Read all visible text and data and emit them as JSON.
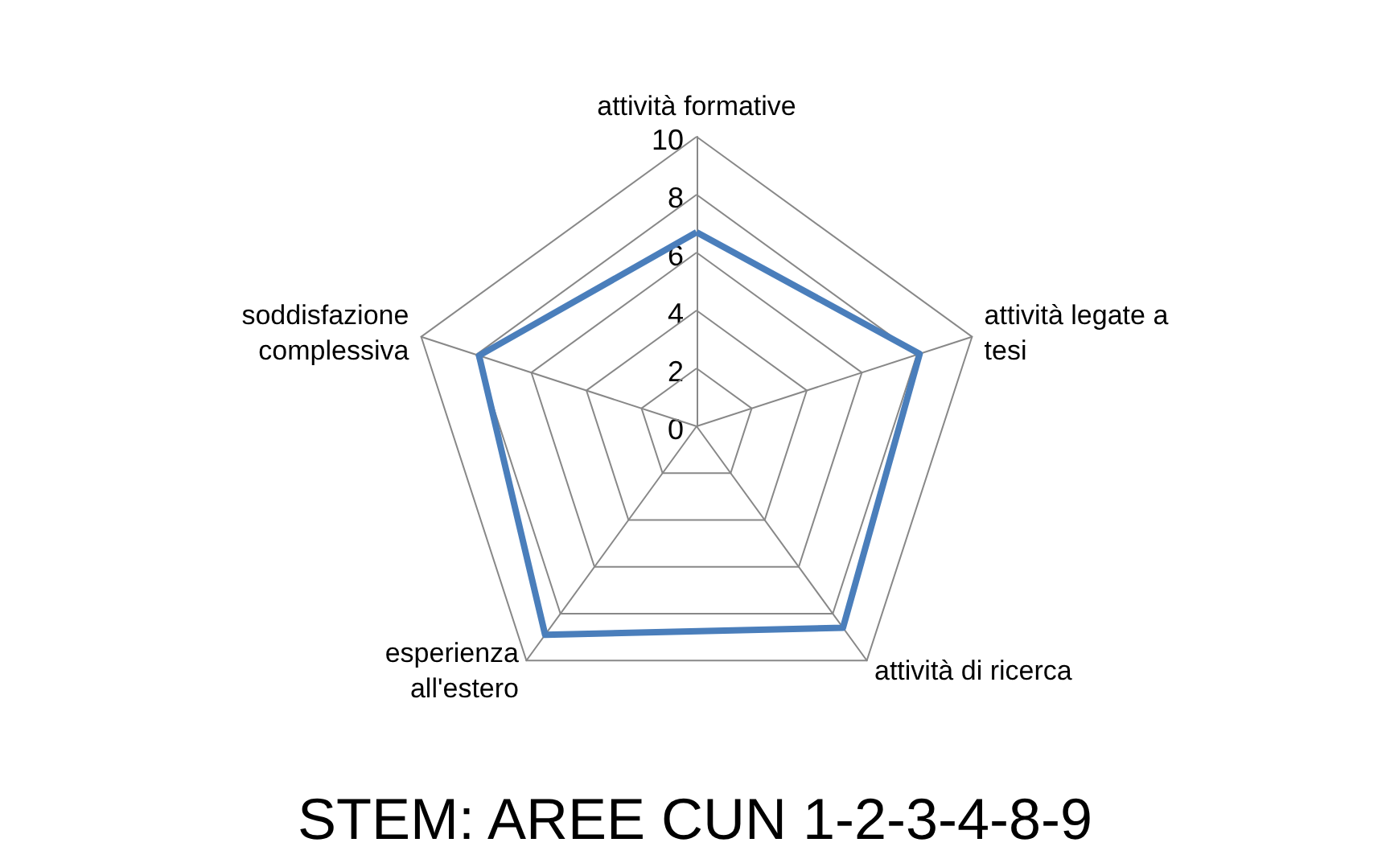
{
  "chart_data": {
    "type": "radar",
    "title": "STEM: AREE CUN 1-2-3-4-8-9",
    "categories": [
      "attività formative",
      "attività legate a\ntesi",
      "attività di ricerca",
      "esperienza\nall'estero",
      "soddisfazione\ncomplessiva"
    ],
    "series": [
      {
        "color": "#4a7ebb",
        "values": [
          6.7,
          8.1,
          8.6,
          8.9,
          7.9
        ]
      }
    ],
    "ylim": [
      0,
      10
    ],
    "yticks": [
      0,
      2,
      4,
      6,
      8,
      10
    ],
    "marker": "none"
  }
}
